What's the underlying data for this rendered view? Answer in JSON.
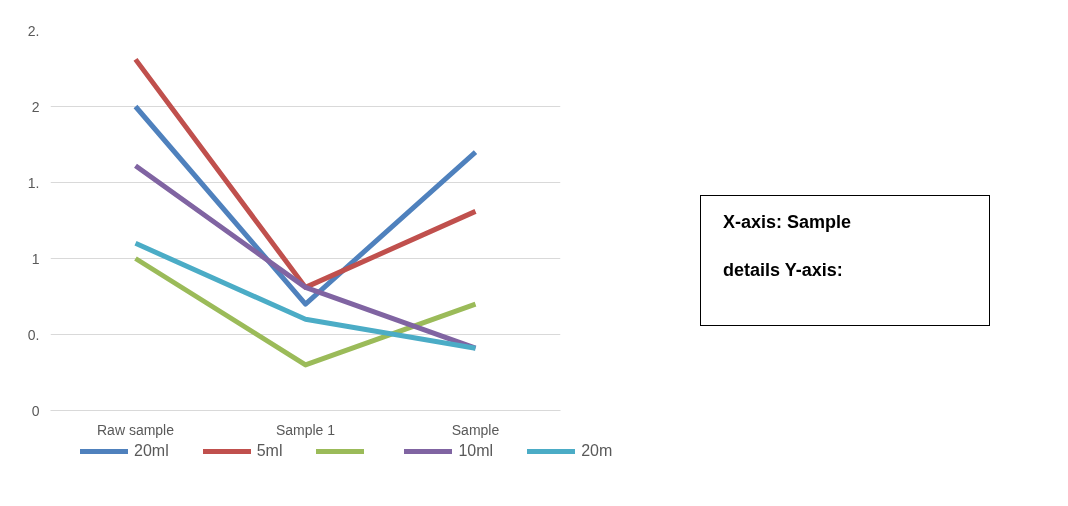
{
  "chart_data": {
    "type": "line",
    "categories": [
      "Raw sample",
      "Sample 1",
      "Sample"
    ],
    "series": [
      {
        "name": "20ml",
        "color": "#4f81bd",
        "values": [
          2.0,
          0.7,
          1.7
        ]
      },
      {
        "name": "5ml",
        "color": "#c0504d",
        "values": [
          2.31,
          0.81,
          1.31
        ]
      },
      {
        "color": "#9bbb59",
        "values": [
          1.0,
          0.3,
          0.7
        ]
      },
      {
        "name": "10ml",
        "color": "#8064a2",
        "values": [
          1.61,
          0.81,
          0.41
        ]
      },
      {
        "name": "20m",
        "color": "#4bacc6",
        "values": [
          1.1,
          0.6,
          0.41
        ]
      }
    ],
    "ylim": [
      0,
      2.5
    ],
    "yticks": [
      {
        "value": 0,
        "label": "0"
      },
      {
        "value": 0.5,
        "label": "0."
      },
      {
        "value": 1,
        "label": "1"
      },
      {
        "value": 1.5,
        "label": "1."
      },
      {
        "value": 2,
        "label": "2"
      },
      {
        "value": 2.5,
        "label": "2."
      }
    ],
    "grid": "y",
    "legend": "bottom",
    "marker": "none",
    "line_style": "solid",
    "annotations": [
      "X-axis: Sample",
      "details Y-axis:"
    ]
  }
}
